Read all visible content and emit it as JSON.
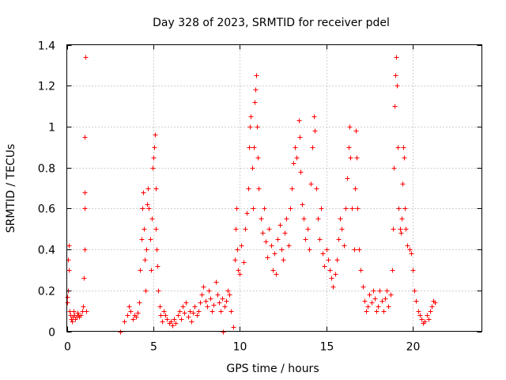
{
  "chart_data": {
    "type": "scatter",
    "title": "Day 328 of 2023, SRMTID for receiver pdel",
    "xlabel": "GPS time / hours",
    "ylabel": "SRMTID / TECUs",
    "xlim": [
      0,
      24
    ],
    "ylim": [
      0,
      1.4
    ],
    "xticks": [
      0,
      5,
      10,
      15,
      20
    ],
    "xtick_labels": [
      "0",
      "5",
      "10",
      "15",
      "20"
    ],
    "yticks": [
      0,
      0.2,
      0.4,
      0.6,
      0.8,
      1.0,
      1.2,
      1.4
    ],
    "ytick_labels": [
      "0",
      "0.2",
      "0.4",
      "0.6",
      "0.8",
      "1",
      "1.2",
      "1.4"
    ],
    "grid": true,
    "marker": "+",
    "color": "#ff0000",
    "series": [
      {
        "name": "SRMTID",
        "points": [
          [
            0.0,
            0.14
          ],
          [
            0.03,
            0.17
          ],
          [
            0.06,
            0.2
          ],
          [
            0.08,
            0.35
          ],
          [
            0.1,
            0.42
          ],
          [
            0.12,
            0.3
          ],
          [
            0.15,
            0.1
          ],
          [
            0.2,
            0.08
          ],
          [
            0.25,
            0.06
          ],
          [
            0.3,
            0.05
          ],
          [
            0.35,
            0.07
          ],
          [
            0.4,
            0.1
          ],
          [
            0.45,
            0.08
          ],
          [
            0.5,
            0.06
          ],
          [
            0.55,
            0.07
          ],
          [
            0.6,
            0.09
          ],
          [
            0.65,
            0.08
          ],
          [
            0.7,
            0.07
          ],
          [
            0.8,
            0.08
          ],
          [
            0.9,
            0.1
          ],
          [
            0.95,
            0.12
          ],
          [
            1.0,
            0.26
          ],
          [
            1.02,
            0.4
          ],
          [
            1.03,
            0.6
          ],
          [
            1.04,
            0.68
          ],
          [
            1.05,
            0.95
          ],
          [
            1.06,
            1.34
          ],
          [
            1.1,
            0.1
          ],
          [
            3.1,
            0.0
          ],
          [
            3.3,
            0.05
          ],
          [
            3.5,
            0.08
          ],
          [
            3.6,
            0.12
          ],
          [
            3.7,
            0.1
          ],
          [
            3.8,
            0.06
          ],
          [
            3.9,
            0.08
          ],
          [
            4.0,
            0.07
          ],
          [
            4.1,
            0.09
          ],
          [
            4.2,
            0.14
          ],
          [
            4.25,
            0.3
          ],
          [
            4.3,
            0.45
          ],
          [
            4.35,
            0.6
          ],
          [
            4.4,
            0.68
          ],
          [
            4.45,
            0.5
          ],
          [
            4.5,
            0.35
          ],
          [
            4.55,
            0.2
          ],
          [
            4.6,
            0.4
          ],
          [
            4.65,
            0.62
          ],
          [
            4.7,
            0.7
          ],
          [
            4.75,
            0.6
          ],
          [
            4.8,
            0.45
          ],
          [
            4.85,
            0.3
          ],
          [
            4.9,
            0.55
          ],
          [
            4.95,
            0.8
          ],
          [
            5.0,
            0.85
          ],
          [
            5.05,
            0.9
          ],
          [
            5.1,
            0.96
          ],
          [
            5.12,
            0.7
          ],
          [
            5.15,
            0.5
          ],
          [
            5.2,
            0.4
          ],
          [
            5.25,
            0.32
          ],
          [
            5.3,
            0.2
          ],
          [
            5.35,
            0.12
          ],
          [
            5.4,
            0.08
          ],
          [
            5.5,
            0.05
          ],
          [
            5.6,
            0.1
          ],
          [
            5.7,
            0.08
          ],
          [
            5.8,
            0.06
          ],
          [
            5.9,
            0.04
          ],
          [
            6.0,
            0.05
          ],
          [
            6.1,
            0.03
          ],
          [
            6.2,
            0.06
          ],
          [
            6.3,
            0.04
          ],
          [
            6.4,
            0.08
          ],
          [
            6.5,
            0.1
          ],
          [
            6.6,
            0.06
          ],
          [
            6.7,
            0.12
          ],
          [
            6.8,
            0.09
          ],
          [
            6.9,
            0.14
          ],
          [
            7.0,
            0.07
          ],
          [
            7.1,
            0.1
          ],
          [
            7.2,
            0.05
          ],
          [
            7.3,
            0.09
          ],
          [
            7.4,
            0.12
          ],
          [
            7.5,
            0.08
          ],
          [
            7.6,
            0.1
          ],
          [
            7.7,
            0.14
          ],
          [
            7.8,
            0.18
          ],
          [
            7.9,
            0.22
          ],
          [
            8.0,
            0.15
          ],
          [
            8.1,
            0.12
          ],
          [
            8.2,
            0.2
          ],
          [
            8.3,
            0.16
          ],
          [
            8.4,
            0.1
          ],
          [
            8.5,
            0.13
          ],
          [
            8.6,
            0.24
          ],
          [
            8.7,
            0.18
          ],
          [
            8.8,
            0.14
          ],
          [
            8.9,
            0.1
          ],
          [
            9.0,
            0.16
          ],
          [
            9.05,
            0.0
          ],
          [
            9.1,
            0.12
          ],
          [
            9.2,
            0.15
          ],
          [
            9.3,
            0.2
          ],
          [
            9.4,
            0.18
          ],
          [
            9.5,
            0.1
          ],
          [
            9.6,
            0.02
          ],
          [
            9.7,
            0.35
          ],
          [
            9.75,
            0.5
          ],
          [
            9.8,
            0.6
          ],
          [
            9.85,
            0.4
          ],
          [
            9.9,
            0.3
          ],
          [
            10.0,
            0.28
          ],
          [
            10.1,
            0.42
          ],
          [
            10.2,
            0.34
          ],
          [
            10.3,
            0.5
          ],
          [
            10.4,
            0.58
          ],
          [
            10.5,
            0.7
          ],
          [
            10.55,
            0.9
          ],
          [
            10.6,
            1.0
          ],
          [
            10.65,
            1.05
          ],
          [
            10.7,
            0.8
          ],
          [
            10.75,
            0.6
          ],
          [
            10.8,
            0.9
          ],
          [
            10.85,
            1.12
          ],
          [
            10.9,
            1.18
          ],
          [
            10.95,
            1.25
          ],
          [
            11.0,
            1.0
          ],
          [
            11.05,
            0.85
          ],
          [
            11.1,
            0.7
          ],
          [
            11.2,
            0.55
          ],
          [
            11.3,
            0.48
          ],
          [
            11.4,
            0.6
          ],
          [
            11.5,
            0.44
          ],
          [
            11.6,
            0.36
          ],
          [
            11.7,
            0.5
          ],
          [
            11.8,
            0.42
          ],
          [
            11.9,
            0.3
          ],
          [
            12.0,
            0.38
          ],
          [
            12.1,
            0.28
          ],
          [
            12.2,
            0.45
          ],
          [
            12.3,
            0.52
          ],
          [
            12.4,
            0.4
          ],
          [
            12.5,
            0.35
          ],
          [
            12.6,
            0.48
          ],
          [
            12.7,
            0.55
          ],
          [
            12.8,
            0.42
          ],
          [
            12.9,
            0.6
          ],
          [
            13.0,
            0.7
          ],
          [
            13.1,
            0.82
          ],
          [
            13.2,
            0.9
          ],
          [
            13.3,
            0.85
          ],
          [
            13.4,
            1.03
          ],
          [
            13.45,
            0.95
          ],
          [
            13.5,
            0.78
          ],
          [
            13.6,
            0.62
          ],
          [
            13.7,
            0.55
          ],
          [
            13.8,
            0.45
          ],
          [
            13.9,
            0.5
          ],
          [
            14.0,
            0.4
          ],
          [
            14.1,
            0.72
          ],
          [
            14.2,
            0.9
          ],
          [
            14.3,
            1.05
          ],
          [
            14.35,
            0.98
          ],
          [
            14.4,
            0.7
          ],
          [
            14.5,
            0.55
          ],
          [
            14.6,
            0.45
          ],
          [
            14.7,
            0.6
          ],
          [
            14.8,
            0.38
          ],
          [
            14.9,
            0.32
          ],
          [
            15.0,
            0.4
          ],
          [
            15.1,
            0.35
          ],
          [
            15.2,
            0.3
          ],
          [
            15.3,
            0.26
          ],
          [
            15.4,
            0.22
          ],
          [
            15.5,
            0.28
          ],
          [
            15.6,
            0.35
          ],
          [
            15.7,
            0.45
          ],
          [
            15.8,
            0.55
          ],
          [
            15.9,
            0.5
          ],
          [
            16.0,
            0.42
          ],
          [
            16.1,
            0.6
          ],
          [
            16.2,
            0.75
          ],
          [
            16.3,
            0.9
          ],
          [
            16.35,
            1.0
          ],
          [
            16.4,
            0.85
          ],
          [
            16.5,
            0.6
          ],
          [
            16.6,
            0.4
          ],
          [
            16.65,
            0.7
          ],
          [
            16.7,
            0.98
          ],
          [
            16.75,
            0.85
          ],
          [
            16.8,
            0.6
          ],
          [
            16.9,
            0.4
          ],
          [
            17.0,
            0.3
          ],
          [
            17.1,
            0.22
          ],
          [
            17.2,
            0.15
          ],
          [
            17.3,
            0.1
          ],
          [
            17.4,
            0.12
          ],
          [
            17.5,
            0.18
          ],
          [
            17.6,
            0.14
          ],
          [
            17.7,
            0.2
          ],
          [
            17.8,
            0.16
          ],
          [
            17.9,
            0.1
          ],
          [
            18.0,
            0.12
          ],
          [
            18.1,
            0.2
          ],
          [
            18.2,
            0.15
          ],
          [
            18.3,
            0.1
          ],
          [
            18.4,
            0.16
          ],
          [
            18.5,
            0.2
          ],
          [
            18.6,
            0.12
          ],
          [
            18.7,
            0.18
          ],
          [
            18.8,
            0.3
          ],
          [
            18.85,
            0.5
          ],
          [
            18.9,
            0.8
          ],
          [
            18.95,
            1.1
          ],
          [
            19.0,
            1.25
          ],
          [
            19.05,
            1.34
          ],
          [
            19.1,
            1.2
          ],
          [
            19.15,
            0.9
          ],
          [
            19.2,
            0.6
          ],
          [
            19.25,
            0.5
          ],
          [
            19.3,
            0.48
          ],
          [
            19.35,
            0.55
          ],
          [
            19.4,
            0.72
          ],
          [
            19.45,
            0.9
          ],
          [
            19.5,
            0.85
          ],
          [
            19.55,
            0.6
          ],
          [
            19.6,
            0.5
          ],
          [
            19.7,
            0.42
          ],
          [
            19.8,
            0.4
          ],
          [
            19.9,
            0.38
          ],
          [
            20.0,
            0.3
          ],
          [
            20.1,
            0.2
          ],
          [
            20.2,
            0.15
          ],
          [
            20.3,
            0.1
          ],
          [
            20.4,
            0.08
          ],
          [
            20.5,
            0.06
          ],
          [
            20.6,
            0.04
          ],
          [
            20.7,
            0.05
          ],
          [
            20.8,
            0.08
          ],
          [
            20.9,
            0.06
          ],
          [
            21.0,
            0.1
          ],
          [
            21.1,
            0.12
          ],
          [
            21.2,
            0.15
          ],
          [
            21.3,
            0.14
          ]
        ]
      }
    ]
  }
}
